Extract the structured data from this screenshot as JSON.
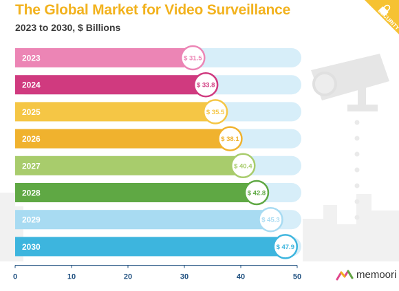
{
  "header": {
    "title": "The Global Market for Video Surveillance",
    "subtitle": "2023 to 2030, $ Billions"
  },
  "corner_badge": {
    "label": "SECURITY",
    "icon": "lock-icon",
    "color": "#F6C232"
  },
  "brand": {
    "logo_text": "memoori",
    "icon": "memoori-logo-icon"
  },
  "colors": {
    "title": "#F2B21E",
    "subtitle": "#3A3A3A",
    "track": "#D7EEF9",
    "axis": "#1E4F7F"
  },
  "chart_data": {
    "type": "bar",
    "orientation": "horizontal",
    "title": "The Global Market for Video Surveillance",
    "subtitle": "2023 to 2030, $ Billions",
    "categories": [
      "2023",
      "2024",
      "2025",
      "2026",
      "2027",
      "2028",
      "2029",
      "2030"
    ],
    "values": [
      31.5,
      33.8,
      35.5,
      38.1,
      40.4,
      42.8,
      45.3,
      47.9
    ],
    "value_labels": [
      "$ 31.5",
      "$ 33.8",
      "$ 35.5",
      "$ 38.1",
      "$ 40.4",
      "$ 42.8",
      "$ 45.3",
      "$ 47.9"
    ],
    "bar_colors": [
      "#EC85B5",
      "#D03A7F",
      "#F5C645",
      "#F0B22E",
      "#A8CC6C",
      "#5FA844",
      "#A8DBF2",
      "#3DB5DE"
    ],
    "xlim": [
      0,
      50
    ],
    "xticks": [
      "0",
      "10",
      "20",
      "30",
      "40",
      "50"
    ],
    "xtick_values": [
      0,
      10,
      20,
      30,
      40,
      50
    ],
    "grid": false,
    "legend": "none"
  }
}
